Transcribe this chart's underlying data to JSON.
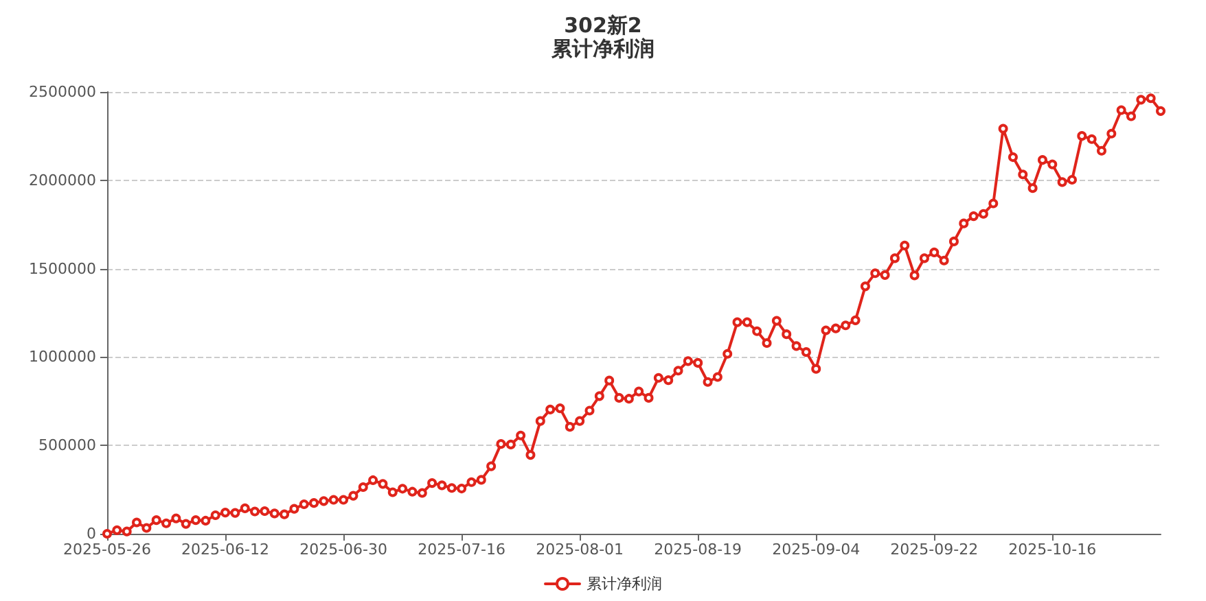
{
  "chart_data": {
    "type": "line",
    "title": "302新2",
    "subtitle": "累计净利润",
    "categories": [
      "2025-05-26",
      null,
      null,
      null,
      null,
      null,
      null,
      null,
      null,
      null,
      null,
      null,
      "2025-06-12",
      null,
      null,
      null,
      null,
      null,
      null,
      null,
      null,
      null,
      null,
      null,
      "2025-06-30",
      null,
      null,
      null,
      null,
      null,
      null,
      null,
      null,
      null,
      null,
      null,
      "2025-07-16",
      null,
      null,
      null,
      null,
      null,
      null,
      null,
      null,
      null,
      null,
      null,
      "2025-08-01",
      null,
      null,
      null,
      null,
      null,
      null,
      null,
      null,
      null,
      null,
      null,
      "2025-08-19",
      null,
      null,
      null,
      null,
      null,
      null,
      null,
      null,
      null,
      null,
      null,
      "2025-09-04",
      null,
      null,
      null,
      null,
      null,
      null,
      null,
      null,
      null,
      null,
      null,
      "2025-09-22",
      null,
      null,
      null,
      null,
      null,
      null,
      null,
      null,
      null,
      null,
      null,
      "2025-10-16",
      null,
      null,
      null,
      null,
      null,
      null,
      null,
      null,
      null,
      null,
      null
    ],
    "series": [
      {
        "name": "累计净利润",
        "color": "#e0241b",
        "values": [
          0,
          20000,
          13000,
          64000,
          33000,
          77000,
          59000,
          87000,
          56000,
          77000,
          74000,
          105000,
          120000,
          118000,
          144000,
          126000,
          128000,
          115000,
          110000,
          141000,
          167000,
          174000,
          185000,
          192000,
          192000,
          215000,
          264000,
          303000,
          282000,
          235000,
          255000,
          238000,
          231000,
          287000,
          274000,
          259000,
          256000,
          292000,
          305000,
          382000,
          508000,
          505000,
          556000,
          446000,
          638000,
          703000,
          710000,
          605000,
          638000,
          697000,
          779000,
          867000,
          769000,
          764000,
          805000,
          769000,
          882000,
          869000,
          923000,
          977000,
          967000,
          859000,
          887000,
          1018000,
          1197000,
          1197000,
          1146000,
          1079000,
          1205000,
          1129000,
          1062000,
          1028000,
          933000,
          1151000,
          1162000,
          1179000,
          1208000,
          1400000,
          1474000,
          1464000,
          1559000,
          1631000,
          1462000,
          1559000,
          1592000,
          1546000,
          1654000,
          1756000,
          1797000,
          1810000,
          1869000,
          2292000,
          2131000,
          2033000,
          1956000,
          2115000,
          2090000,
          1990000,
          2003000,
          2251000,
          2233000,
          2167000,
          2264000,
          2397000,
          2362000,
          2456000,
          2464000,
          2392000
        ]
      }
    ],
    "ylim": [
      0,
      2500000
    ],
    "yticks": [
      0,
      500000,
      1000000,
      1500000,
      2000000,
      2500000
    ],
    "grid": "y",
    "legend": "bottom",
    "marker": "circle",
    "line_style": "solid"
  }
}
